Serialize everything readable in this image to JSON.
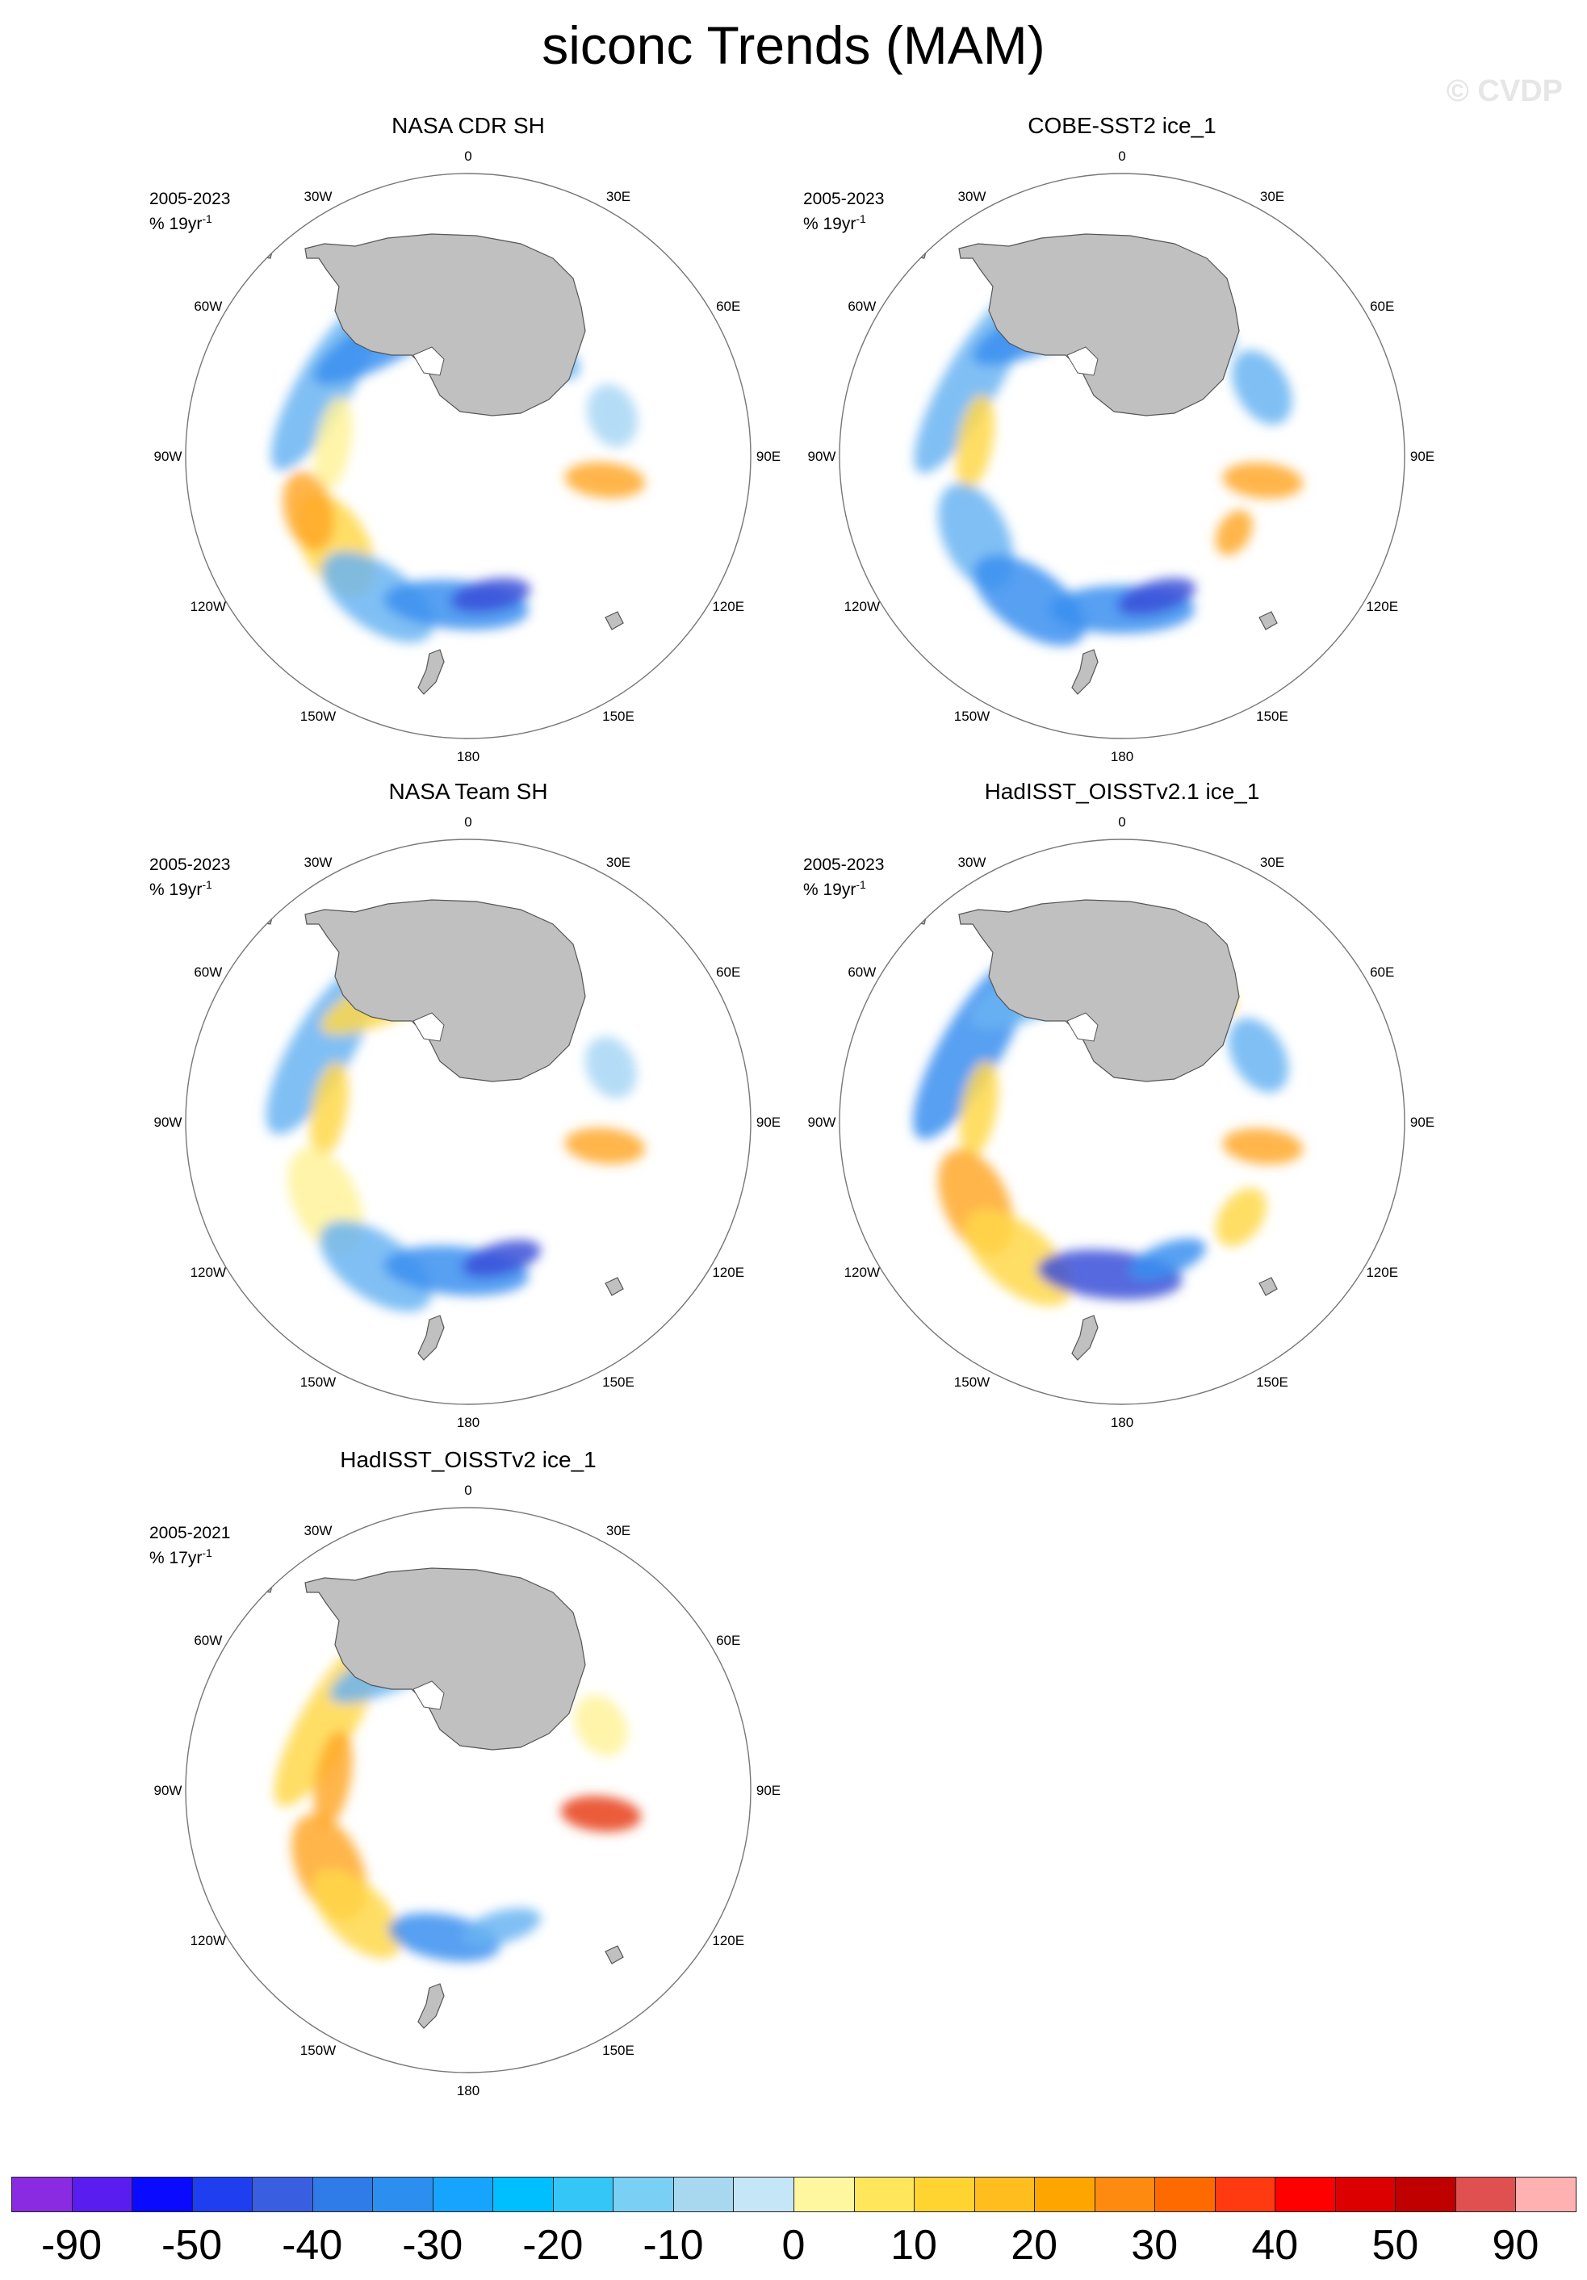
{
  "title": "siconc Trends (MAM)",
  "watermark": "© CVDP",
  "panels": [
    {
      "name": "NASA CDR SH",
      "period": "2005-2023",
      "units_main": "% 19yr",
      "units_exp": "-1"
    },
    {
      "name": "COBE-SST2 ice_1",
      "period": "2005-2023",
      "units_main": "% 19yr",
      "units_exp": "-1"
    },
    {
      "name": "NASA Team SH",
      "period": "2005-2023",
      "units_main": "% 19yr",
      "units_exp": "-1"
    },
    {
      "name": "HadISST_OISSTv2.1 ice_1",
      "period": "2005-2023",
      "units_main": "% 19yr",
      "units_exp": "-1"
    },
    {
      "name": "HadISST_OISSTv2 ice_1",
      "period": "2005-2021",
      "units_main": "% 17yr",
      "units_exp": "-1"
    }
  ],
  "longitude_labels": [
    "0",
    "30E",
    "60E",
    "90E",
    "120E",
    "150E",
    "180",
    "150W",
    "120W",
    "90W",
    "60W",
    "30W"
  ],
  "colorbar": {
    "colors": [
      "#8a2be2",
      "#5a1df0",
      "#0a0aff",
      "#1e3ef0",
      "#3a5ee0",
      "#2f7be8",
      "#2c8ff0",
      "#16a4ff",
      "#00bfff",
      "#35c6f8",
      "#7ad0f4",
      "#a8d8f0",
      "#c4e6f6",
      "#fff7a0",
      "#ffe65a",
      "#ffd330",
      "#ffbd1e",
      "#ffa500",
      "#ff8a10",
      "#ff6a00",
      "#ff3a10",
      "#ff0000",
      "#dd0000",
      "#c00000",
      "#e05050",
      "#ffb0b0"
    ],
    "labels": [
      "-90",
      "-50",
      "-40",
      "-30",
      "-20",
      "-10",
      "0",
      "10",
      "20",
      "30",
      "40",
      "50",
      "90"
    ]
  }
}
